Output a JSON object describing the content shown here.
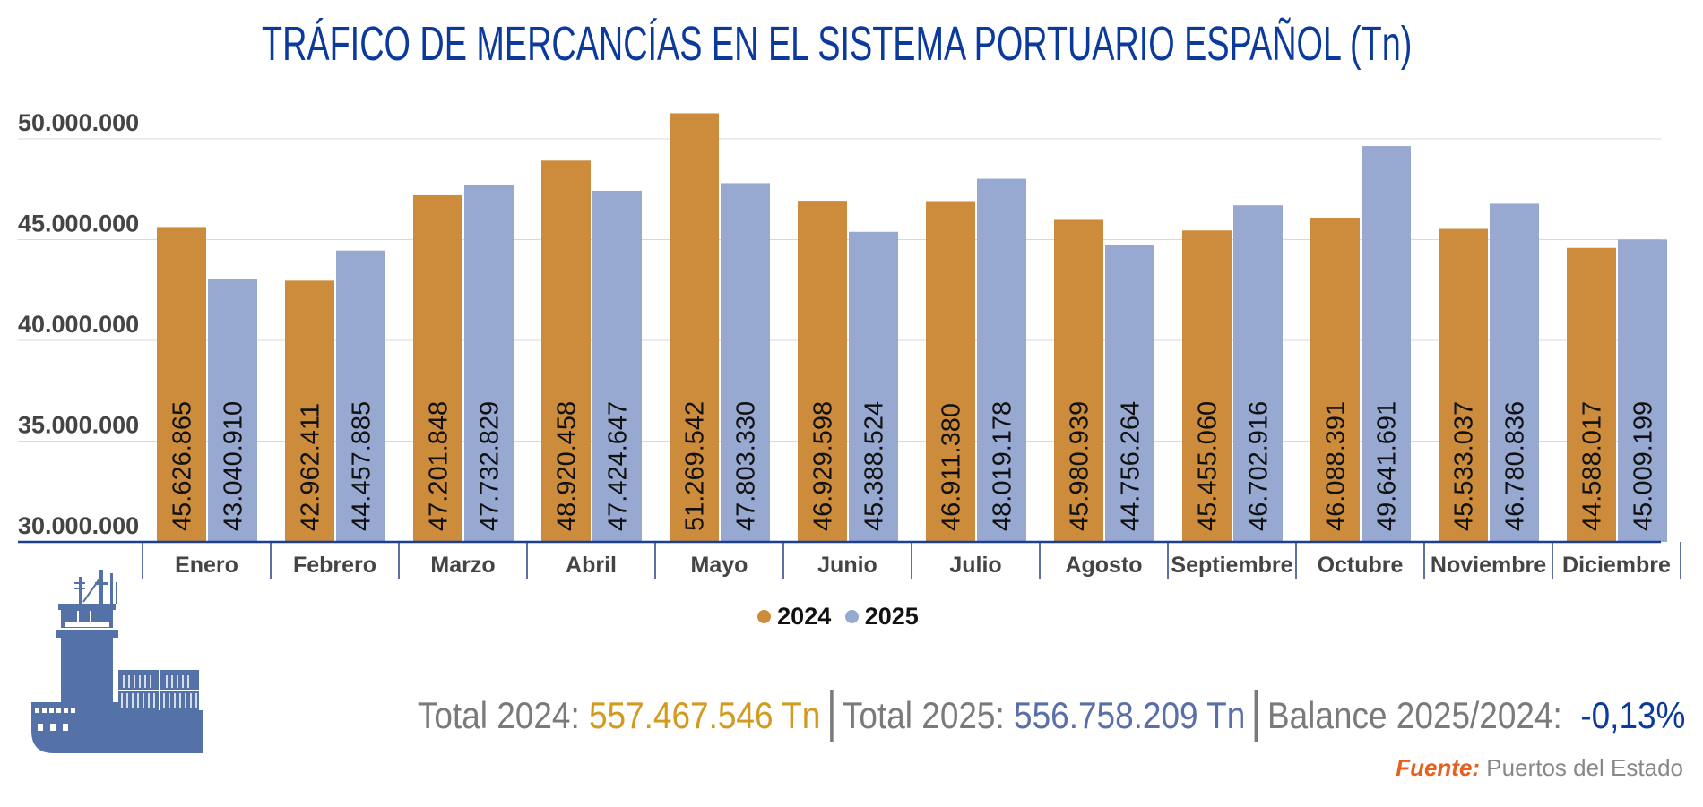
{
  "title": "TRÁFICO DE MERCANCÍAS EN EL SISTEMA PORTUARIO ESPAÑOL (Tn)",
  "colors": {
    "2024": "#cc8c3c",
    "2025": "#97a8d1",
    "title": "#0b3a9c",
    "axis": "#1c3f94",
    "ship": "#5472a8"
  },
  "chart_data": {
    "type": "bar",
    "title": "TRÁFICO DE MERCANCÍAS EN EL SISTEMA PORTUARIO ESPAÑOL (Tn)",
    "categories": [
      "Enero",
      "Febrero",
      "Marzo",
      "Abril",
      "Mayo",
      "Junio",
      "Julio",
      "Agosto",
      "Septiembre",
      "Octubre",
      "Noviembre",
      "Diciembre"
    ],
    "series": [
      {
        "name": "2024",
        "values": [
          45626865,
          42962411,
          47201848,
          48920458,
          51269542,
          46929598,
          46911380,
          45980939,
          45455060,
          46088391,
          45533037,
          44588017
        ],
        "labels": [
          "45.626.865",
          "42.962.411",
          "47.201.848",
          "48.920.458",
          "51.269.542",
          "46.929.598",
          "46.911.380",
          "45.980.939",
          "45.455.060",
          "46.088.391",
          "45.533.037",
          "44.588.017"
        ]
      },
      {
        "name": "2025",
        "values": [
          43040910,
          44457885,
          47732829,
          47424647,
          47803330,
          45388524,
          48019178,
          44756264,
          46702916,
          49641691,
          46780836,
          45009199
        ],
        "labels": [
          "43.040.910",
          "44.457.885",
          "47.732.829",
          "47.424.647",
          "47.803.330",
          "45.388.524",
          "48.019.178",
          "44.756.264",
          "46.702.916",
          "49.641.691",
          "46.780.836",
          "45.009.199"
        ]
      }
    ],
    "yticks": [
      30000000,
      35000000,
      40000000,
      45000000,
      50000000
    ],
    "ytick_labels": [
      "30.000.000",
      "35.000.000",
      "40.000.000",
      "45.000.000",
      "50.000.000"
    ],
    "ylim": [
      30000000,
      50000000
    ],
    "grid": true,
    "legend": "bottom",
    "xlabel": "",
    "ylabel": ""
  },
  "legend": {
    "items": [
      "2024",
      "2025"
    ]
  },
  "totals": {
    "t2024_label": "Total 2024: ",
    "t2024_value": "557.467.546 Tn",
    "t2025_label": "Total 2025: ",
    "t2025_value": "556.758.209 Tn",
    "balance_label": "Balance 2025/2024:  ",
    "balance_value": "-0,13%"
  },
  "source": {
    "label": "Fuente:",
    "text": " Puertos del Estado"
  }
}
